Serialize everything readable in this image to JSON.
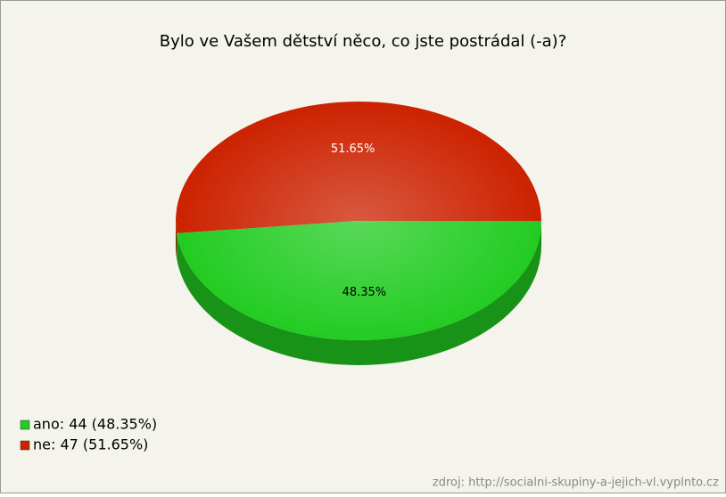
{
  "chart_data": {
    "type": "pie",
    "title": "Bylo ve Vašem dětství něco, co jste postrádal (-a)?",
    "categories": [
      "ano: 44 (48.35%)",
      "ne: 47 (51.65%)"
    ],
    "values": [
      48.35,
      51.65
    ],
    "value_labels": [
      "48.35%",
      "51.65%"
    ],
    "colors": [
      "#22cc22",
      "#cc2200"
    ],
    "legend": "bottom-left",
    "source": "zdroj: http://socialni-skupiny-a-jejich-vl.vyplnto.cz"
  }
}
